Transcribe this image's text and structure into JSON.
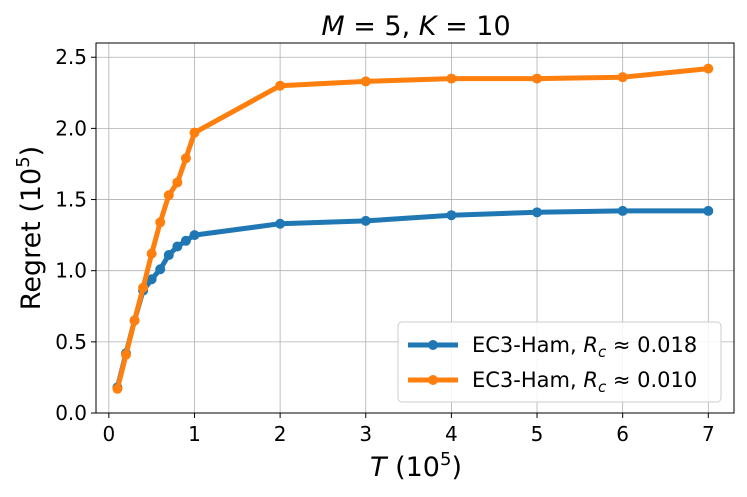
{
  "chart_data": {
    "type": "line",
    "title_parts": {
      "m_var": "M",
      "eq1": " = 5, ",
      "k_var": "K",
      "eq2": " = 10"
    },
    "xlabel_parts": {
      "var": "T",
      "unit": " (10",
      "exp": "5",
      "close": ")"
    },
    "ylabel_parts": {
      "text": "Regret (10",
      "exp": "5",
      "close": ")"
    },
    "xlim": [
      -0.15,
      7.3
    ],
    "ylim": [
      0.0,
      2.6
    ],
    "xticks": [
      0,
      1,
      2,
      3,
      4,
      5,
      6,
      7
    ],
    "xtick_labels": [
      "0",
      "1",
      "2",
      "3",
      "4",
      "5",
      "6",
      "7"
    ],
    "yticks": [
      0.0,
      0.5,
      1.0,
      1.5,
      2.0,
      2.5
    ],
    "ytick_labels": [
      "0.0",
      "0.5",
      "1.0",
      "1.5",
      "2.0",
      "2.5"
    ],
    "grid": true,
    "legend_position": "lower-right",
    "series": [
      {
        "name_prefix": "EC3-Ham, ",
        "name_var": "R",
        "name_sub": "c",
        "name_suffix": " ≈ 0.018",
        "color": "#1f77b4",
        "x": [
          0.1,
          0.2,
          0.3,
          0.4,
          0.5,
          0.6,
          0.7,
          0.8,
          0.9,
          1.0,
          2.0,
          3.0,
          4.0,
          5.0,
          6.0,
          7.0
        ],
        "y": [
          0.18,
          0.42,
          0.65,
          0.86,
          0.94,
          1.01,
          1.11,
          1.17,
          1.21,
          1.25,
          1.33,
          1.35,
          1.39,
          1.41,
          1.42,
          1.42
        ]
      },
      {
        "name_prefix": "EC3-Ham, ",
        "name_var": "R",
        "name_sub": "c",
        "name_suffix": " ≈ 0.010",
        "color": "#ff7f0e",
        "x": [
          0.1,
          0.2,
          0.3,
          0.4,
          0.5,
          0.6,
          0.7,
          0.8,
          0.9,
          1.0,
          2.0,
          3.0,
          4.0,
          5.0,
          6.0,
          7.0
        ],
        "y": [
          0.17,
          0.41,
          0.65,
          0.88,
          1.12,
          1.34,
          1.53,
          1.62,
          1.79,
          1.97,
          2.3,
          2.33,
          2.35,
          2.35,
          2.36,
          2.42
        ]
      }
    ]
  }
}
